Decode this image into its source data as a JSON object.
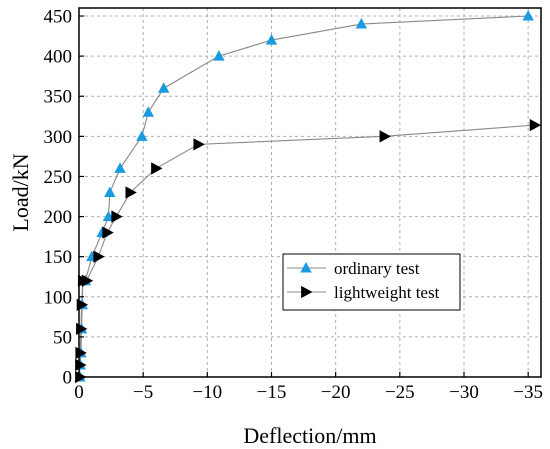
{
  "chart_data": {
    "type": "line",
    "xlabel": "Deflection/mm",
    "ylabel": "Load/kN",
    "xlim": [
      0,
      -36
    ],
    "ylim": [
      0,
      460
    ],
    "xticks": [
      0,
      -5,
      -10,
      -15,
      -20,
      -25,
      -30,
      -35
    ],
    "xtick_labels": [
      "0",
      "−5",
      "−10",
      "−15",
      "−20",
      "−25",
      "−30",
      "−35"
    ],
    "yticks": [
      0,
      50,
      100,
      150,
      200,
      250,
      300,
      350,
      400,
      450
    ],
    "ytick_labels": [
      "0",
      "50",
      "100",
      "150",
      "200",
      "250",
      "300",
      "350",
      "400",
      "450"
    ],
    "grid": true,
    "legend_position": "center-right",
    "series": [
      {
        "name": "ordinary test",
        "marker": "triangle-up",
        "color": "#1a9be0",
        "line_color": "#8a8a8a",
        "x": [
          0,
          -0.1,
          -0.15,
          -0.2,
          -0.25,
          -0.3,
          -0.5,
          -1.0,
          -1.8,
          -2.3,
          -2.4,
          -3.2,
          -4.9,
          -5.4,
          -6.6,
          -10.9,
          -15.0,
          -22.0,
          -35.0
        ],
        "y": [
          0,
          15,
          30,
          60,
          90,
          120,
          120,
          150,
          180,
          200,
          230,
          260,
          300,
          330,
          360,
          400,
          420,
          440,
          450
        ]
      },
      {
        "name": "lightweight test",
        "marker": "triangle-right",
        "color": "#000000",
        "line_color": "#8a8a8a",
        "x": [
          0,
          -0.05,
          -0.1,
          -0.15,
          -0.2,
          -0.3,
          -0.6,
          -1.5,
          -2.2,
          -2.9,
          -4.0,
          -6.0,
          -9.3,
          -23.8,
          -35.5
        ],
        "y": [
          0,
          15,
          30,
          60,
          90,
          120,
          120,
          150,
          180,
          200,
          230,
          260,
          290,
          300,
          314
        ]
      }
    ]
  }
}
